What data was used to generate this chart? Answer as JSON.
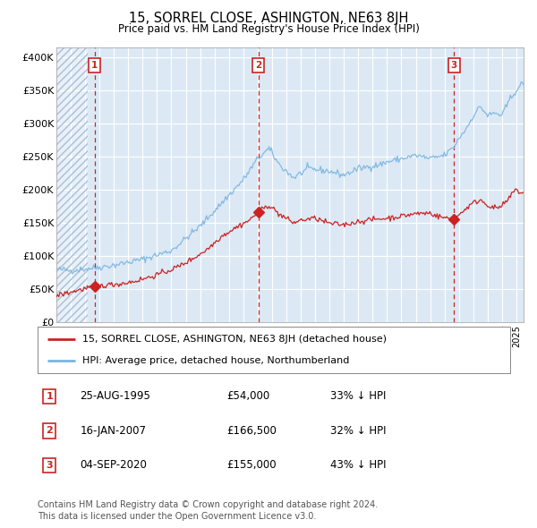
{
  "title": "15, SORREL CLOSE, ASHINGTON, NE63 8JH",
  "subtitle": "Price paid vs. HM Land Registry's House Price Index (HPI)",
  "ylabel_ticks": [
    "£0",
    "£50K",
    "£100K",
    "£150K",
    "£200K",
    "£250K",
    "£300K",
    "£350K",
    "£400K"
  ],
  "ytick_vals": [
    0,
    50000,
    100000,
    150000,
    200000,
    250000,
    300000,
    350000,
    400000
  ],
  "ylim": [
    0,
    415000
  ],
  "xlim_start": 1993.0,
  "xlim_end": 2025.5,
  "hpi_color": "#7ab4e0",
  "price_color": "#cc2222",
  "bg_color": "#dce9f5",
  "hatch_color": "#aabfd4",
  "grid_color": "#ffffff",
  "dashed_line_color": "#cc2222",
  "legend_label_price": "15, SORREL CLOSE, ASHINGTON, NE63 8JH (detached house)",
  "legend_label_hpi": "HPI: Average price, detached house, Northumberland",
  "transactions": [
    {
      "num": 1,
      "date": "25-AUG-1995",
      "price": 54000,
      "price_str": "£54,000",
      "x_year": 1995.65,
      "pct": "33%",
      "dir": "↓"
    },
    {
      "num": 2,
      "date": "16-JAN-2007",
      "price": 166500,
      "price_str": "£166,500",
      "x_year": 2007.04,
      "pct": "32%",
      "dir": "↓"
    },
    {
      "num": 3,
      "date": "04-SEP-2020",
      "price": 155000,
      "price_str": "£155,000",
      "x_year": 2020.67,
      "pct": "43%",
      "dir": "↓"
    }
  ],
  "footer_line1": "Contains HM Land Registry data © Crown copyright and database right 2024.",
  "footer_line2": "This data is licensed under the Open Government Licence v3.0.",
  "hatch_end_year": 1995.2
}
